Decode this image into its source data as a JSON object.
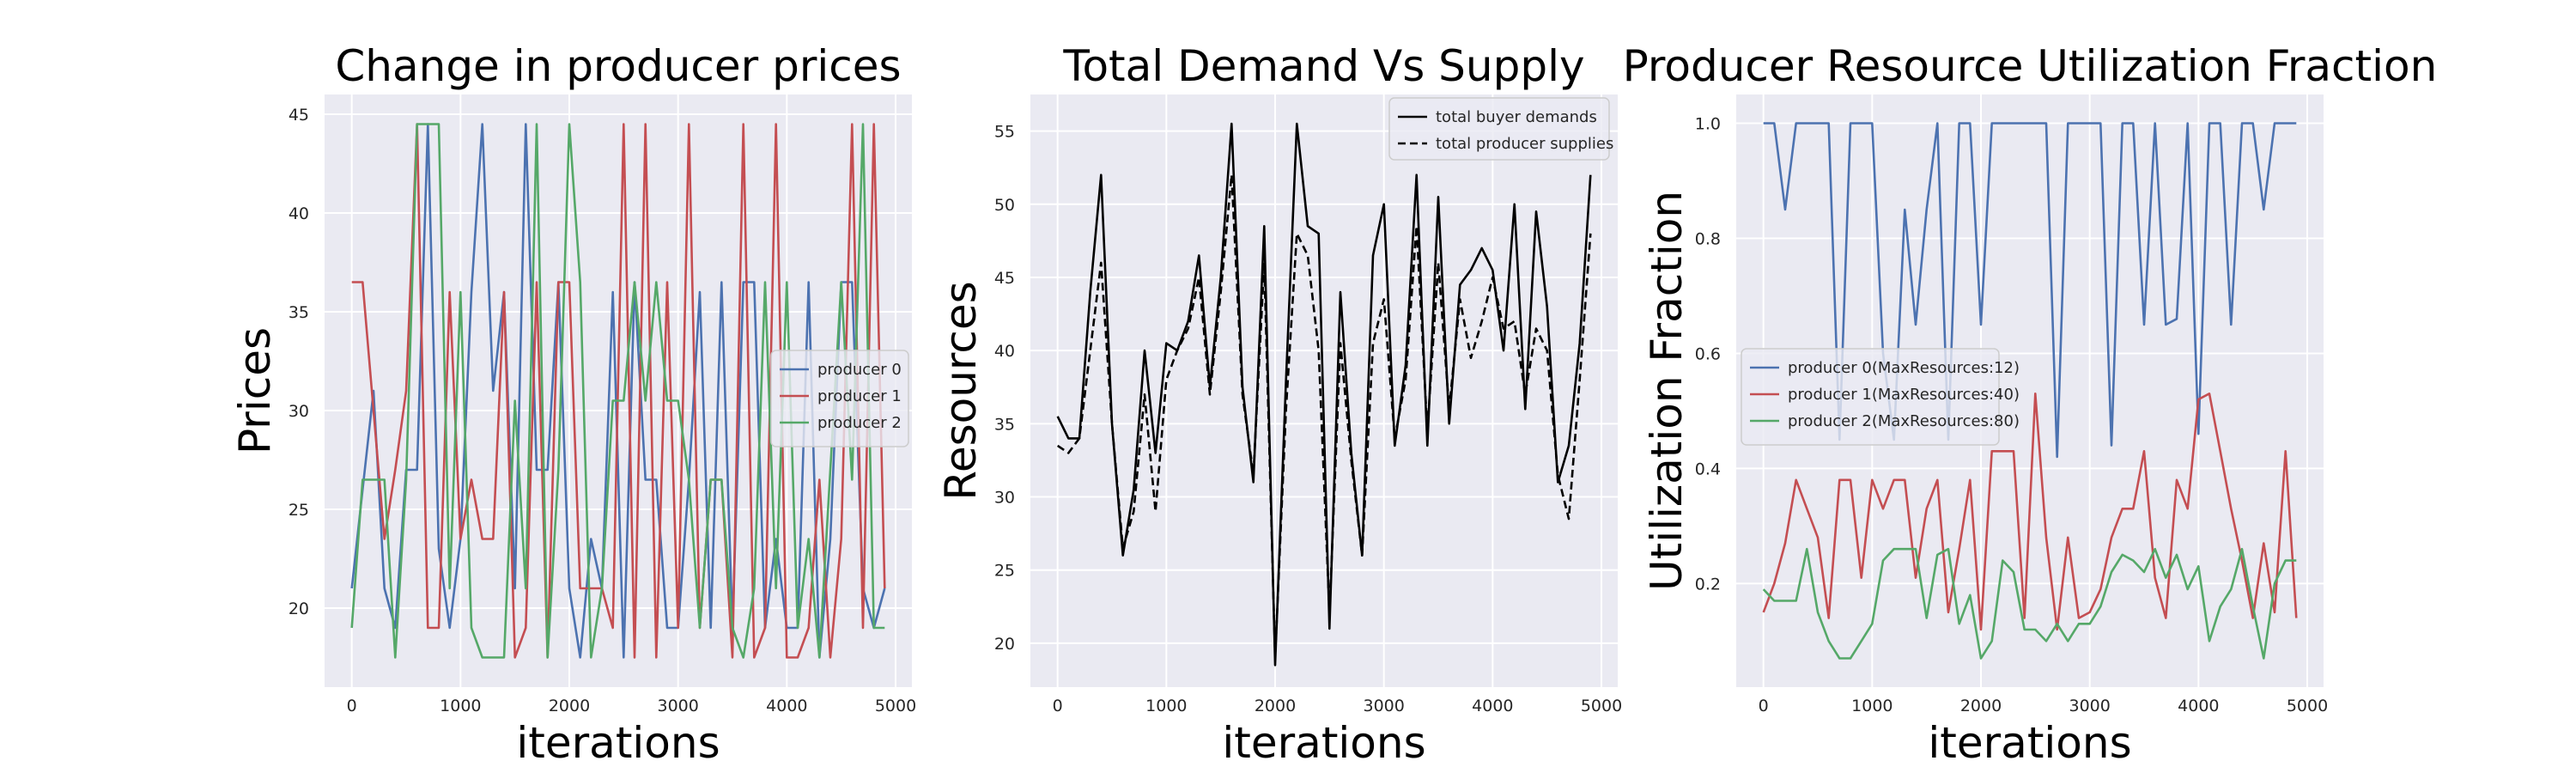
{
  "chart_data": [
    {
      "type": "line",
      "title": "Change in producer prices",
      "xlabel": "iterations",
      "ylabel": "Prices",
      "xlim": [
        -250,
        5150
      ],
      "ylim": [
        16,
        46
      ],
      "xticks": [
        0,
        1000,
        2000,
        3000,
        4000,
        5000
      ],
      "yticks": [
        20,
        25,
        30,
        35,
        40,
        45
      ],
      "grid": true,
      "legend": {
        "placement": "center-right"
      },
      "series": [
        {
          "name": "producer 0",
          "color": "#4c72b0",
          "style": "solid",
          "x": [
            0,
            100,
            200,
            300,
            400,
            500,
            600,
            700,
            800,
            900,
            1000,
            1100,
            1200,
            1300,
            1400,
            1500,
            1600,
            1700,
            1800,
            1900,
            2000,
            2100,
            2200,
            2300,
            2400,
            2500,
            2600,
            2700,
            2800,
            2900,
            3000,
            3100,
            3200,
            3300,
            3400,
            3500,
            3600,
            3700,
            3800,
            3900,
            4000,
            4100,
            4200,
            4300,
            4400,
            4500,
            4600,
            4700,
            4800,
            4900
          ],
          "y": [
            21,
            26,
            31,
            21,
            19,
            27,
            27,
            44.5,
            23,
            19,
            23.5,
            36,
            44.5,
            31,
            36,
            21,
            44.5,
            27,
            27,
            36.5,
            21,
            17.5,
            23.5,
            21,
            36,
            17.5,
            36.5,
            26.5,
            26.5,
            19,
            19,
            26.5,
            36,
            19,
            36.5,
            19,
            36.5,
            36.5,
            19,
            23.5,
            19,
            19,
            36.5,
            17.5,
            23.5,
            36.5,
            36.5,
            21,
            19,
            21
          ]
        },
        {
          "name": "producer 1",
          "color": "#c44e52",
          "style": "solid",
          "x": [
            0,
            100,
            200,
            300,
            400,
            500,
            600,
            700,
            800,
            900,
            1000,
            1100,
            1200,
            1300,
            1400,
            1500,
            1600,
            1700,
            1800,
            1900,
            2000,
            2100,
            2200,
            2300,
            2400,
            2500,
            2600,
            2700,
            2800,
            2900,
            3000,
            3100,
            3200,
            3300,
            3400,
            3500,
            3600,
            3700,
            3800,
            3900,
            4000,
            4100,
            4200,
            4300,
            4400,
            4500,
            4600,
            4700,
            4800,
            4900
          ],
          "y": [
            36.5,
            36.5,
            30,
            23.5,
            27,
            31,
            44.5,
            19,
            19,
            36,
            23.5,
            26.5,
            23.5,
            23.5,
            36,
            17.5,
            19,
            36.5,
            17.5,
            36.5,
            36.5,
            21,
            21,
            21,
            19,
            44.5,
            17.5,
            44.5,
            17.5,
            36.5,
            19,
            44.5,
            19,
            26.5,
            26.5,
            17.5,
            44.5,
            17.5,
            19,
            44.5,
            17.5,
            17.5,
            19,
            26.5,
            17.5,
            23.5,
            44.5,
            19,
            44.5,
            21
          ]
        },
        {
          "name": "producer 2",
          "color": "#55a868",
          "style": "solid",
          "x": [
            0,
            100,
            200,
            300,
            400,
            500,
            600,
            700,
            800,
            900,
            1000,
            1100,
            1200,
            1300,
            1400,
            1500,
            1600,
            1700,
            1800,
            1900,
            2000,
            2100,
            2200,
            2300,
            2400,
            2500,
            2600,
            2700,
            2800,
            2900,
            3000,
            3100,
            3200,
            3300,
            3400,
            3500,
            3600,
            3700,
            3800,
            3900,
            4000,
            4100,
            4200,
            4300,
            4400,
            4500,
            4600,
            4700,
            4800,
            4900
          ],
          "y": [
            19,
            26.5,
            26.5,
            26.5,
            17.5,
            26.5,
            44.5,
            44.5,
            44.5,
            21,
            36,
            19,
            17.5,
            17.5,
            17.5,
            30.5,
            21,
            44.5,
            17.5,
            27,
            44.5,
            36.5,
            17.5,
            21,
            30.5,
            30.5,
            36.5,
            30.5,
            36.5,
            30.5,
            30.5,
            26.5,
            19,
            26.5,
            26.5,
            19,
            17.5,
            21,
            36.5,
            21,
            36.5,
            19,
            23.5,
            17.5,
            27,
            36.5,
            26.5,
            44.5,
            19,
            19
          ]
        }
      ]
    },
    {
      "type": "line",
      "title": "Total Demand Vs Supply",
      "xlabel": "iterations",
      "ylabel": "Resources",
      "xlim": [
        -250,
        5150
      ],
      "ylim": [
        17,
        57.5
      ],
      "xticks": [
        0,
        1000,
        2000,
        3000,
        4000,
        5000
      ],
      "yticks": [
        20,
        25,
        30,
        35,
        40,
        45,
        50,
        55
      ],
      "grid": true,
      "legend": {
        "placement": "top-right"
      },
      "series": [
        {
          "name": "total buyer demands",
          "color": "#000000",
          "style": "solid",
          "x": [
            0,
            100,
            200,
            300,
            400,
            500,
            600,
            700,
            800,
            900,
            1000,
            1100,
            1200,
            1300,
            1400,
            1500,
            1600,
            1700,
            1800,
            1900,
            2000,
            2100,
            2200,
            2300,
            2400,
            2500,
            2600,
            2700,
            2800,
            2900,
            3000,
            3100,
            3200,
            3300,
            3400,
            3500,
            3600,
            3700,
            3800,
            3900,
            4000,
            4100,
            4200,
            4300,
            4400,
            4500,
            4600,
            4700,
            4800,
            4900
          ],
          "y": [
            35.5,
            34,
            34,
            44,
            52,
            35,
            26,
            30.5,
            40,
            33,
            40.5,
            40,
            42,
            46.5,
            37.5,
            45,
            55.5,
            37.5,
            31,
            48.5,
            18.5,
            38,
            55.5,
            48.5,
            48,
            21,
            44,
            33,
            26,
            46.5,
            50,
            33.5,
            39,
            52,
            33.5,
            50.5,
            35,
            44.5,
            45.5,
            47,
            45.5,
            40,
            50,
            36,
            49.5,
            43,
            31,
            33.5,
            40.5,
            52
          ]
        },
        {
          "name": "total producer supplies",
          "color": "#000000",
          "style": "dashed",
          "x": [
            0,
            100,
            200,
            300,
            400,
            500,
            600,
            700,
            800,
            900,
            1000,
            1100,
            1200,
            1300,
            1400,
            1500,
            1600,
            1700,
            1800,
            1900,
            2000,
            2100,
            2200,
            2300,
            2400,
            2500,
            2600,
            2700,
            2800,
            2900,
            3000,
            3100,
            3200,
            3300,
            3400,
            3500,
            3600,
            3700,
            3800,
            3900,
            4000,
            4100,
            4200,
            4300,
            4400,
            4500,
            4600,
            4700,
            4800,
            4900
          ],
          "y": [
            33.5,
            33,
            34,
            40,
            46,
            35,
            26.5,
            29,
            37,
            29,
            38,
            40,
            41.5,
            45,
            37,
            44,
            52,
            37,
            31.5,
            46,
            19,
            36,
            48,
            46.5,
            40,
            22,
            40.5,
            32.5,
            26,
            40.5,
            43.5,
            34,
            38,
            48.5,
            34.5,
            46,
            36,
            43.5,
            39.5,
            42,
            45,
            41.5,
            42,
            37,
            41.5,
            40,
            31.5,
            28.5,
            38,
            48
          ]
        }
      ]
    },
    {
      "type": "line",
      "title": "Producer Resource Utilization Fraction",
      "xlabel": "iterations",
      "ylabel": "Utilization Fraction",
      "xlim": [
        -250,
        5150
      ],
      "ylim": [
        0.02,
        1.05
      ],
      "xticks": [
        0,
        1000,
        2000,
        3000,
        4000,
        5000
      ],
      "yticks": [
        0.2,
        0.4,
        0.6,
        0.8,
        1.0
      ],
      "ytick_labels": [
        "0.2",
        "0.4",
        "0.6",
        "0.8",
        "1.0"
      ],
      "grid": true,
      "legend": {
        "placement": "center-left"
      },
      "series": [
        {
          "name": "producer 0(MaxResources:12)",
          "color": "#4c72b0",
          "style": "solid",
          "x": [
            0,
            100,
            200,
            300,
            400,
            500,
            600,
            700,
            800,
            900,
            1000,
            1100,
            1200,
            1300,
            1400,
            1500,
            1600,
            1700,
            1800,
            1900,
            2000,
            2100,
            2200,
            2300,
            2400,
            2500,
            2600,
            2700,
            2800,
            2900,
            3000,
            3100,
            3200,
            3300,
            3400,
            3500,
            3600,
            3700,
            3800,
            3900,
            4000,
            4100,
            4200,
            4300,
            4400,
            4500,
            4600,
            4700,
            4800,
            4900
          ],
          "y": [
            1.0,
            1.0,
            0.85,
            1.0,
            1.0,
            1.0,
            1.0,
            0.45,
            1.0,
            1.0,
            1.0,
            0.6,
            0.45,
            0.85,
            0.65,
            0.85,
            1.0,
            0.45,
            1.0,
            1.0,
            0.65,
            1.0,
            1.0,
            1.0,
            1.0,
            1.0,
            1.0,
            0.42,
            1.0,
            1.0,
            1.0,
            1.0,
            0.44,
            1.0,
            1.0,
            0.65,
            1.0,
            0.65,
            0.66,
            1.0,
            0.46,
            1.0,
            1.0,
            0.65,
            1.0,
            1.0,
            0.85,
            1.0,
            1.0,
            1.0
          ]
        },
        {
          "name": "producer 1(MaxResources:40)",
          "color": "#c44e52",
          "style": "solid",
          "x": [
            0,
            100,
            200,
            300,
            400,
            500,
            600,
            700,
            800,
            900,
            1000,
            1100,
            1200,
            1300,
            1400,
            1500,
            1600,
            1700,
            1800,
            1900,
            2000,
            2100,
            2200,
            2300,
            2400,
            2500,
            2600,
            2700,
            2800,
            2900,
            3000,
            3100,
            3200,
            3300,
            3400,
            3500,
            3600,
            3700,
            3800,
            3900,
            4000,
            4100,
            4200,
            4300,
            4400,
            4500,
            4600,
            4700,
            4800,
            4900
          ],
          "y": [
            0.15,
            0.2,
            0.27,
            0.38,
            0.33,
            0.28,
            0.14,
            0.38,
            0.38,
            0.21,
            0.38,
            0.33,
            0.38,
            0.38,
            0.21,
            0.33,
            0.38,
            0.15,
            0.26,
            0.38,
            0.12,
            0.43,
            0.43,
            0.43,
            0.14,
            0.53,
            0.28,
            0.12,
            0.28,
            0.14,
            0.15,
            0.19,
            0.28,
            0.33,
            0.33,
            0.43,
            0.21,
            0.14,
            0.38,
            0.33,
            0.52,
            0.53,
            0.43,
            0.33,
            0.24,
            0.14,
            0.27,
            0.15,
            0.43,
            0.14
          ]
        },
        {
          "name": "producer 2(MaxResources:80)",
          "color": "#55a868",
          "style": "solid",
          "x": [
            0,
            100,
            200,
            300,
            400,
            500,
            600,
            700,
            800,
            900,
            1000,
            1100,
            1200,
            1300,
            1400,
            1500,
            1600,
            1700,
            1800,
            1900,
            2000,
            2100,
            2200,
            2300,
            2400,
            2500,
            2600,
            2700,
            2800,
            2900,
            3000,
            3100,
            3200,
            3300,
            3400,
            3500,
            3600,
            3700,
            3800,
            3900,
            4000,
            4100,
            4200,
            4300,
            4400,
            4500,
            4600,
            4700,
            4800,
            4900
          ],
          "y": [
            0.19,
            0.17,
            0.17,
            0.17,
            0.26,
            0.15,
            0.1,
            0.07,
            0.07,
            0.1,
            0.13,
            0.24,
            0.26,
            0.26,
            0.26,
            0.14,
            0.25,
            0.26,
            0.13,
            0.18,
            0.07,
            0.1,
            0.24,
            0.22,
            0.12,
            0.12,
            0.1,
            0.13,
            0.1,
            0.13,
            0.13,
            0.16,
            0.22,
            0.25,
            0.24,
            0.22,
            0.26,
            0.21,
            0.25,
            0.19,
            0.23,
            0.1,
            0.16,
            0.19,
            0.26,
            0.16,
            0.07,
            0.2,
            0.24,
            0.24
          ]
        }
      ]
    }
  ]
}
